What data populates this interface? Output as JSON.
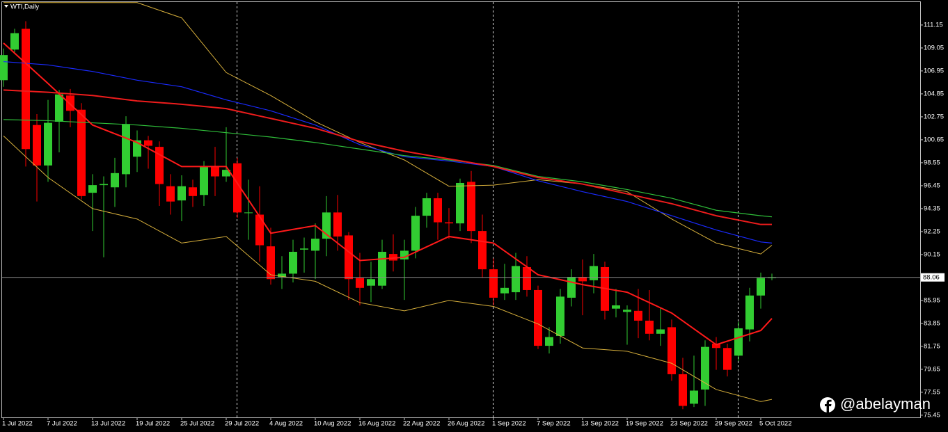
{
  "chart_data": {
    "type": "candlestick",
    "title": "WTI,Daily",
    "watermark": "@abelayman",
    "categories": [
      "1 Jul 2022",
      null,
      null,
      null,
      "7 Jul 2022",
      null,
      null,
      null,
      "13 Jul 2022",
      null,
      null,
      null,
      "19 Jul 2022",
      null,
      null,
      null,
      "25 Jul 2022",
      null,
      null,
      null,
      "29 Jul 2022",
      null,
      null,
      null,
      "4 Aug 2022",
      null,
      null,
      null,
      "10 Aug 2022",
      null,
      null,
      null,
      "16 Aug 2022",
      null,
      null,
      null,
      "22 Aug 2022",
      null,
      null,
      null,
      "26 Aug 2022",
      null,
      null,
      null,
      "1 Sep 2022",
      null,
      null,
      null,
      "7 Sep 2022",
      null,
      null,
      null,
      "13 Sep 2022",
      null,
      null,
      null,
      "19 Sep 2022",
      null,
      null,
      null,
      "23 Sep 2022",
      null,
      null,
      null,
      "29 Sep 2022",
      null,
      null,
      null,
      "5 Oct 2022",
      null
    ],
    "open": [
      106.1,
      108.9,
      110.8,
      102.0,
      98.3,
      102.3,
      104.7,
      103.4,
      95.8,
      96.5,
      96.3,
      97.5,
      99.1,
      100.6,
      100.0,
      96.4,
      95.1,
      96.3,
      95.6,
      98.2,
      97.3,
      98.5,
      94.0,
      93.8,
      90.9,
      88.1,
      88.4,
      90.6,
      90.5,
      91.6,
      94.0,
      91.9,
      88.0,
      87.3,
      87.3,
      90.2,
      89.7,
      90.5,
      93.7,
      95.3,
      93.1,
      93.0,
      96.8,
      92.3,
      88.8,
      86.6,
      86.7,
      89.0,
      86.9,
      81.8,
      82.7,
      86.2,
      88.1,
      87.8,
      89.0,
      85.2,
      84.9,
      85.0,
      84.1,
      82.9,
      83.5,
      79.2,
      76.5,
      77.8,
      82.0,
      81.6,
      80.9,
      83.3,
      86.4,
      88.0
    ],
    "high": [
      109.0,
      110.8,
      111.5,
      103.0,
      104.3,
      105.2,
      105.3,
      104.0,
      97.5,
      97.3,
      99.0,
      102.8,
      101.5,
      101.0,
      100.5,
      97.5,
      97.4,
      97.0,
      98.7,
      100.0,
      101.8,
      99.0,
      97.0,
      96.4,
      92.6,
      90.0,
      91.5,
      91.7,
      93.0,
      95.5,
      95.6,
      92.2,
      90.3,
      89.5,
      91.5,
      92.0,
      91.5,
      94.5,
      95.8,
      95.8,
      94.4,
      97.1,
      97.8,
      93.8,
      89.8,
      89.3,
      90.3,
      90.0,
      87.3,
      83.5,
      87.0,
      88.8,
      89.7,
      90.2,
      89.5,
      87.0,
      85.5,
      87.0,
      86.9,
      85.3,
      84.2,
      80.7,
      80.9,
      82.3,
      82.6,
      82.0,
      84.0,
      87.1,
      88.5,
      88.4
    ],
    "low": [
      105.5,
      108.5,
      98.2,
      95.0,
      96.8,
      99.5,
      101.8,
      95.2,
      92.3,
      89.9,
      94.5,
      96.3,
      97.7,
      98.0,
      94.6,
      93.8,
      93.2,
      94.5,
      94.6,
      95.5,
      96.8,
      93.5,
      91.5,
      89.5,
      87.4,
      87.0,
      87.6,
      88.5,
      87.9,
      90.0,
      90.5,
      86.0,
      85.5,
      85.8,
      87.0,
      88.6,
      86.0,
      89.8,
      92.6,
      91.5,
      91.6,
      92.3,
      91.2,
      88.0,
      85.5,
      86.0,
      86.0,
      86.3,
      81.5,
      81.1,
      82.0,
      85.4,
      84.6,
      86.6,
      84.2,
      84.4,
      81.9,
      82.5,
      82.3,
      81.8,
      78.6,
      76.0,
      76.2,
      76.3,
      79.6,
      79.0,
      80.4,
      82.2,
      85.2,
      87.8
    ],
    "close": [
      108.4,
      110.4,
      99.8,
      98.3,
      102.2,
      104.8,
      103.3,
      95.5,
      96.5,
      96.6,
      97.6,
      102.1,
      100.6,
      100.1,
      96.6,
      95.0,
      96.4,
      95.5,
      98.2,
      97.3,
      97.9,
      94.0,
      94.0,
      91.0,
      87.9,
      88.4,
      90.4,
      90.7,
      91.6,
      94.0,
      91.8,
      87.9,
      87.1,
      87.9,
      90.4,
      89.6,
      90.5,
      93.7,
      95.3,
      93.1,
      93.0,
      96.7,
      92.3,
      88.8,
      86.2,
      87.1,
      89.1,
      86.9,
      81.8,
      82.6,
      86.3,
      88.1,
      87.7,
      89.1,
      85.0,
      85.5,
      85.1,
      84.1,
      82.9,
      83.3,
      79.2,
      76.3,
      77.7,
      81.7,
      81.6,
      79.6,
      83.4,
      86.4,
      88.0,
      88.06
    ],
    "up_color": "#32cd32",
    "down_color": "#ff0000",
    "overlay_x": [
      0,
      4,
      8,
      12,
      16,
      20,
      24,
      28,
      32,
      36,
      40,
      44,
      48,
      52,
      56,
      60,
      64,
      68,
      69
    ],
    "overlays": [
      {
        "color": "#d9b13c",
        "values": [
          113.2,
          113.2,
          113.2,
          113.2,
          111.8,
          106.8,
          104.7,
          102.3,
          100.4,
          98.8,
          96.4,
          96.5,
          97.0,
          96.6,
          95.9,
          93.4,
          91.2,
          90.2,
          91.0
        ]
      },
      {
        "color": "#d9b13c",
        "values": [
          101.0,
          97.2,
          94.35,
          93.4,
          91.2,
          91.8,
          88.3,
          87.7,
          85.75,
          85.0,
          85.95,
          85.4,
          83.8,
          81.6,
          81.3,
          80.2,
          77.8,
          76.7,
          76.9
        ]
      },
      {
        "color": "#1a2bff",
        "values": [
          107.8,
          107.5,
          106.9,
          106.1,
          105.5,
          104.3,
          103.3,
          102.0,
          100.2,
          99.1,
          98.7,
          98.2,
          96.9,
          95.9,
          95.0,
          93.7,
          92.4,
          91.3,
          91.2
        ]
      },
      {
        "color": "#2fbf3a",
        "values": [
          102.5,
          102.4,
          102.2,
          102.0,
          101.7,
          101.3,
          100.9,
          100.4,
          99.8,
          99.2,
          98.8,
          98.3,
          97.3,
          96.8,
          96.1,
          95.3,
          94.2,
          93.7,
          93.6
        ]
      },
      {
        "color": "#ee1c1c",
        "values": [
          105.2,
          105.0,
          104.7,
          104.2,
          103.9,
          103.5,
          102.6,
          101.7,
          100.5,
          99.6,
          98.9,
          98.2,
          97.2,
          96.6,
          95.7,
          94.8,
          93.7,
          92.9,
          92.9
        ]
      },
      {
        "color": "#ff1a1a",
        "values": [
          109.5,
          105.8,
          102.0,
          100.4,
          98.2,
          98.2,
          92.1,
          92.8,
          89.6,
          89.9,
          91.8,
          91.2,
          88.3,
          87.4,
          86.7,
          84.8,
          81.9,
          83.2,
          84.3
        ]
      }
    ],
    "last_price": 88.06,
    "ylim": [
      75.25,
      113.31
    ],
    "yticks": [
      111.15,
      109.05,
      106.95,
      104.85,
      102.75,
      100.65,
      98.55,
      96.45,
      94.35,
      92.25,
      90.15,
      85.95,
      83.85,
      81.75,
      79.65,
      77.55,
      75.45
    ]
  }
}
